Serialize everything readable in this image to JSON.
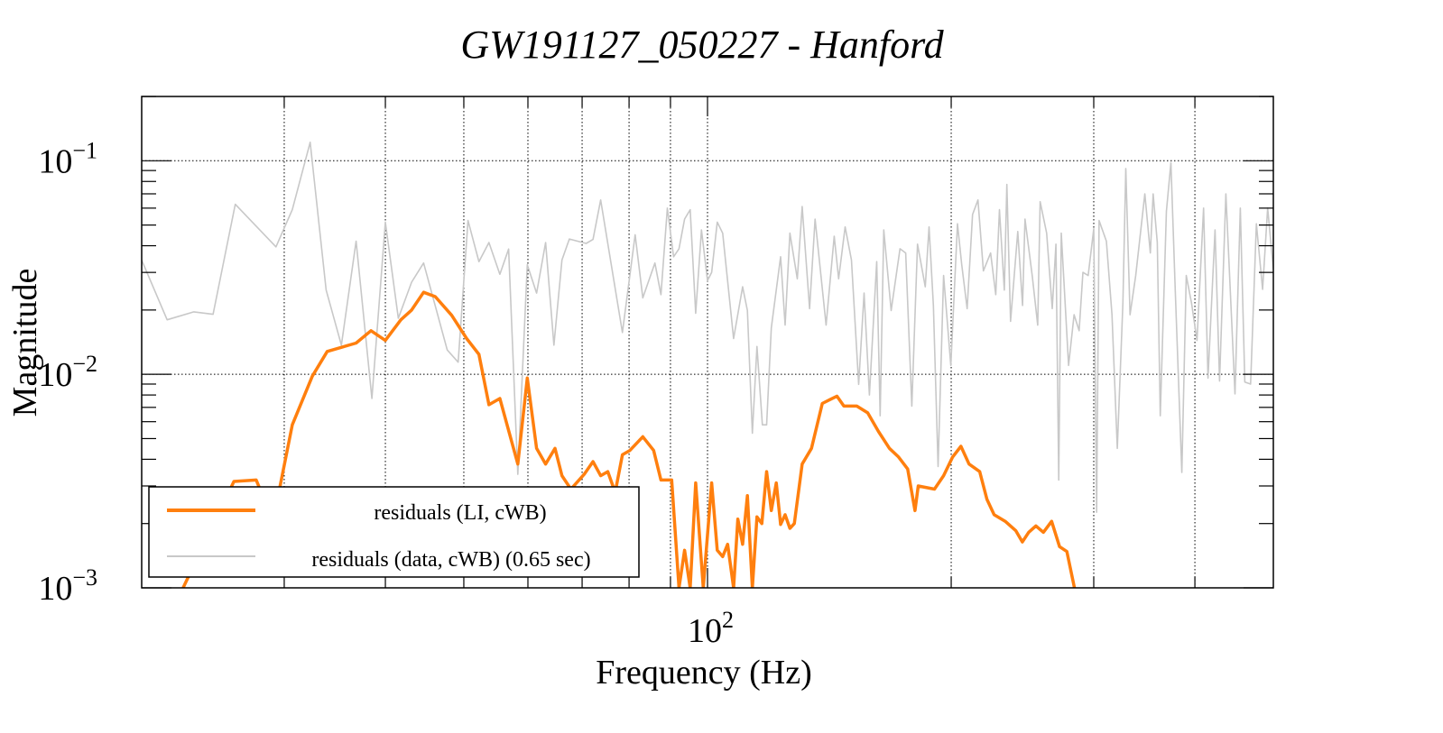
{
  "chart_data": {
    "type": "line",
    "title": "GW191127_050227 - Hanford",
    "xlabel": "Frequency (Hz)",
    "ylabel": "Magnitude",
    "xscale": "log",
    "yscale": "log",
    "xlim": [
      20,
      500
    ],
    "ylim": [
      0.001,
      0.2
    ],
    "grid": true,
    "x_gridlines": [
      30,
      40,
      50,
      60,
      70,
      80,
      90,
      100,
      200,
      300,
      400
    ],
    "x_tick_labels": [
      {
        "value": 100,
        "base": "10",
        "exp": "2"
      }
    ],
    "y_tick_labels": [
      {
        "value": 0.1,
        "base": "10",
        "exp": "−1"
      },
      {
        "value": 0.01,
        "base": "10",
        "exp": "−2"
      },
      {
        "value": 0.001,
        "base": "10",
        "exp": "−3"
      }
    ],
    "legend_position": "bottom-left",
    "series": [
      {
        "name": "residuals (LI, cWB)",
        "color": "#ff7f0e",
        "points": [
          [
            22.5,
            0.001
          ],
          [
            26.0,
            0.00315
          ],
          [
            27.7,
            0.0032
          ],
          [
            28.0,
            0.0029
          ],
          [
            29.6,
            0.0029
          ],
          [
            30.7,
            0.0058
          ],
          [
            32.5,
            0.0098
          ],
          [
            33.9,
            0.0128
          ],
          [
            36.8,
            0.014
          ],
          [
            38.4,
            0.016
          ],
          [
            40.0,
            0.0144
          ],
          [
            41.8,
            0.018
          ],
          [
            43.1,
            0.02
          ],
          [
            44.6,
            0.0242
          ],
          [
            46.1,
            0.0231
          ],
          [
            48.3,
            0.0189
          ],
          [
            50.4,
            0.0147
          ],
          [
            52.2,
            0.0124
          ],
          [
            53.7,
            0.0072
          ],
          [
            55.4,
            0.0077
          ],
          [
            58.3,
            0.0038
          ],
          [
            59.9,
            0.0096
          ],
          [
            61.5,
            0.0045
          ],
          [
            63.1,
            0.0038
          ],
          [
            64.8,
            0.0045
          ],
          [
            66.1,
            0.00335
          ],
          [
            67.8,
            0.0029
          ],
          [
            70.4,
            0.0034
          ],
          [
            72.2,
            0.0039
          ],
          [
            73.8,
            0.00335
          ],
          [
            75.3,
            0.0035
          ],
          [
            76.9,
            0.0028
          ],
          [
            78.5,
            0.0042
          ],
          [
            80.2,
            0.0044
          ],
          [
            83.2,
            0.0051
          ],
          [
            85.8,
            0.0044
          ],
          [
            87.6,
            0.0032
          ],
          [
            90.3,
            0.0032
          ],
          [
            92.2,
            0.001
          ],
          [
            93.7,
            0.0015
          ],
          [
            95.2,
            0.001
          ],
          [
            96.7,
            0.0031
          ],
          [
            98.8,
            0.001
          ],
          [
            101.2,
            0.0031
          ],
          [
            102.8,
            0.0015
          ],
          [
            104.4,
            0.0014
          ],
          [
            105.9,
            0.0016
          ],
          [
            107.7,
            0.001
          ],
          [
            109.0,
            0.0021
          ],
          [
            110.5,
            0.0016
          ],
          [
            112.0,
            0.0027
          ],
          [
            113.6,
            0.001
          ],
          [
            115.1,
            0.00215
          ],
          [
            116.7,
            0.002
          ],
          [
            118.3,
            0.0035
          ],
          [
            119.9,
            0.0023
          ],
          [
            121.6,
            0.0031
          ],
          [
            123.1,
            0.00198
          ],
          [
            124.7,
            0.0022
          ],
          [
            126.4,
            0.0019
          ],
          [
            128.0,
            0.002
          ],
          [
            130.9,
            0.0038
          ],
          [
            134.4,
            0.0045
          ],
          [
            138.6,
            0.0073
          ],
          [
            141.5,
            0.0076
          ],
          [
            144.5,
            0.0079
          ],
          [
            147.4,
            0.0071
          ],
          [
            152.9,
            0.0071
          ],
          [
            157.7,
            0.0066
          ],
          [
            162.6,
            0.0054
          ],
          [
            167.8,
            0.0045
          ],
          [
            172.2,
            0.0041
          ],
          [
            176.7,
            0.0036
          ],
          [
            180.4,
            0.0023
          ],
          [
            182.1,
            0.003
          ],
          [
            190.7,
            0.0029
          ],
          [
            195.7,
            0.00335
          ],
          [
            200.8,
            0.0041
          ],
          [
            205.6,
            0.0046
          ],
          [
            210.4,
            0.0038
          ],
          [
            216.9,
            0.0035
          ],
          [
            221.4,
            0.0026
          ],
          [
            226.0,
            0.0022
          ],
          [
            233.2,
            0.00205
          ],
          [
            240.4,
            0.00185
          ],
          [
            244.9,
            0.00164
          ],
          [
            249.3,
            0.00182
          ],
          [
            254.5,
            0.00195
          ],
          [
            260.0,
            0.00182
          ],
          [
            266.1,
            0.00205
          ],
          [
            272.2,
            0.00156
          ],
          [
            277.9,
            0.00148
          ],
          [
            284.0,
            0.001
          ]
        ]
      },
      {
        "name": "residuals (data, cWB) (0.65 sec)",
        "color": "#c8c8c8",
        "points": [
          [
            20,
            0.0343
          ],
          [
            21.5,
            0.018
          ],
          [
            23.2,
            0.0196
          ],
          [
            24.5,
            0.0191
          ],
          [
            26.1,
            0.0625
          ],
          [
            29.3,
            0.0395
          ],
          [
            30.7,
            0.059
          ],
          [
            32.3,
            0.122
          ],
          [
            33.8,
            0.0248
          ],
          [
            35.3,
            0.0137
          ],
          [
            36.8,
            0.042
          ],
          [
            38.5,
            0.0077
          ],
          [
            40.0,
            0.0516
          ],
          [
            41.5,
            0.0183
          ],
          [
            43.1,
            0.027
          ],
          [
            44.6,
            0.0332
          ],
          [
            47.7,
            0.013
          ],
          [
            49.2,
            0.0114
          ],
          [
            50.6,
            0.0525
          ],
          [
            52.2,
            0.0337
          ],
          [
            53.7,
            0.0414
          ],
          [
            55.4,
            0.0294
          ],
          [
            56.8,
            0.0386
          ],
          [
            58.3,
            0.0034
          ],
          [
            59.9,
            0.0326
          ],
          [
            61.5,
            0.024
          ],
          [
            63.1,
            0.0414
          ],
          [
            64.6,
            0.0137
          ],
          [
            66.1,
            0.0343
          ],
          [
            67.5,
            0.043
          ],
          [
            70.8,
            0.041
          ],
          [
            72.2,
            0.0428
          ],
          [
            73.8,
            0.0655
          ],
          [
            76.4,
            0.0294
          ],
          [
            78.5,
            0.0157
          ],
          [
            81.4,
            0.045
          ],
          [
            83.2,
            0.0228
          ],
          [
            86.1,
            0.0332
          ],
          [
            87.6,
            0.0236
          ],
          [
            89.2,
            0.06
          ],
          [
            90.8,
            0.0355
          ],
          [
            92.2,
            0.0387
          ],
          [
            93.7,
            0.0533
          ],
          [
            95.2,
            0.059
          ],
          [
            96.7,
            0.0193
          ],
          [
            98.3,
            0.0474
          ],
          [
            100,
            0.0275
          ],
          [
            101.2,
            0.03
          ],
          [
            102.8,
            0.0516
          ],
          [
            104.4,
            0.0458
          ],
          [
            107.7,
            0.0147
          ],
          [
            110.5,
            0.0257
          ],
          [
            112.0,
            0.0199
          ],
          [
            113.6,
            0.0053
          ],
          [
            115.1,
            0.0135
          ],
          [
            116.9,
            0.0058
          ],
          [
            118.3,
            0.0058
          ],
          [
            119.9,
            0.0165
          ],
          [
            123.1,
            0.0355
          ],
          [
            124.7,
            0.017
          ],
          [
            126.4,
            0.0458
          ],
          [
            129.1,
            0.028
          ],
          [
            130.9,
            0.061
          ],
          [
            133.7,
            0.0203
          ],
          [
            135.8,
            0.0533
          ],
          [
            140.1,
            0.017
          ],
          [
            143.4,
            0.0443
          ],
          [
            145.2,
            0.028
          ],
          [
            147.9,
            0.049
          ],
          [
            150.6,
            0.0343
          ],
          [
            153.7,
            0.00897
          ],
          [
            156.1,
            0.024
          ],
          [
            158.5,
            0.008
          ],
          [
            161.8,
            0.0337
          ],
          [
            163.4,
            0.0064
          ],
          [
            165.1,
            0.0474
          ],
          [
            168.6,
            0.0199
          ],
          [
            172.9,
            0.0387
          ],
          [
            175.7,
            0.037
          ],
          [
            178.8,
            0.0071
          ],
          [
            181.7,
            0.0407
          ],
          [
            185.8,
            0.0257
          ],
          [
            187.8,
            0.049
          ],
          [
            190.1,
            0.021
          ],
          [
            192.7,
            0.0037
          ],
          [
            195.7,
            0.029
          ],
          [
            199.8,
            0.011
          ],
          [
            203.6,
            0.0507
          ],
          [
            206.1,
            0.0326
          ],
          [
            209.3,
            0.0203
          ],
          [
            212.5,
            0.056
          ],
          [
            215.8,
            0.0655
          ],
          [
            219.2,
            0.0305
          ],
          [
            223.7,
            0.037
          ],
          [
            227.0,
            0.0236
          ],
          [
            229.4,
            0.059
          ],
          [
            232.6,
            0.0248
          ],
          [
            234.3,
            0.0775
          ],
          [
            236.8,
            0.0177
          ],
          [
            241.7,
            0.0466
          ],
          [
            245.0,
            0.021
          ],
          [
            246.7,
            0.0533
          ],
          [
            251.8,
            0.029
          ],
          [
            255.8,
            0.017
          ],
          [
            257.6,
            0.0643
          ],
          [
            262.4,
            0.0458
          ],
          [
            266.6,
            0.0203
          ],
          [
            269.4,
            0.0407
          ],
          [
            271.6,
            0.0032
          ],
          [
            273.5,
            0.0458
          ],
          [
            279.3,
            0.011
          ],
          [
            283.7,
            0.019
          ],
          [
            287.8,
            0.016
          ],
          [
            290.9,
            0.03
          ],
          [
            295.3,
            0.029
          ],
          [
            300.0,
            0.048
          ],
          [
            302.5,
            0.00226
          ],
          [
            304.6,
            0.0525
          ],
          [
            311.0,
            0.042
          ],
          [
            316.0,
            0.019
          ],
          [
            320.8,
            0.0045
          ],
          [
            325.9,
            0.0216
          ],
          [
            328.6,
            0.092
          ],
          [
            332.6,
            0.019
          ],
          [
            338.0,
            0.029
          ],
          [
            346.9,
            0.07
          ],
          [
            352.4,
            0.037
          ],
          [
            355.2,
            0.07
          ],
          [
            359.4,
            0.0414
          ],
          [
            362.5,
            0.0064
          ],
          [
            368.9,
            0.058
          ],
          [
            373.6,
            0.098
          ],
          [
            378.3,
            0.0248
          ],
          [
            385.4,
            0.00347
          ],
          [
            390.3,
            0.029
          ],
          [
            396.1,
            0.0216
          ],
          [
            402.4,
            0.0144
          ],
          [
            410.0,
            0.06
          ],
          [
            415.2,
            0.0096
          ],
          [
            423.6,
            0.0474
          ],
          [
            429.1,
            0.0093
          ],
          [
            436.9,
            0.07
          ],
          [
            448.3,
            0.0081
          ],
          [
            455.2,
            0.06
          ],
          [
            461.1,
            0.0092
          ],
          [
            468.7,
            0.009
          ],
          [
            476.5,
            0.0507
          ],
          [
            485,
            0.025
          ],
          [
            492,
            0.06
          ],
          [
            500,
            0.031
          ]
        ]
      }
    ]
  }
}
